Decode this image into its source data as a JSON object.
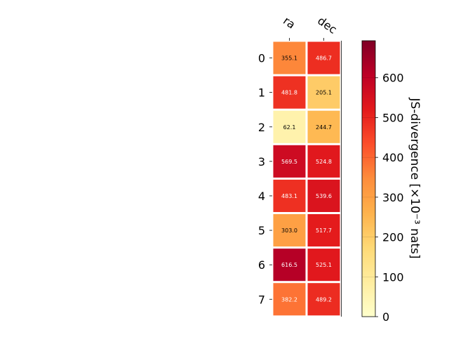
{
  "chart_data": {
    "type": "heatmap",
    "columns": [
      "ra",
      "dec"
    ],
    "rows": [
      "0",
      "1",
      "2",
      "3",
      "4",
      "5",
      "6",
      "7"
    ],
    "values": [
      [
        355.1,
        486.7
      ],
      [
        481.8,
        205.1
      ],
      [
        62.1,
        244.7
      ],
      [
        569.5,
        524.8
      ],
      [
        483.1,
        539.6
      ],
      [
        303.0,
        517.7
      ],
      [
        616.5,
        525.1
      ],
      [
        382.2,
        489.2
      ]
    ],
    "cell_labels": [
      [
        "355.1",
        "486.7"
      ],
      [
        "481.8",
        "205.1"
      ],
      [
        "62.1",
        "244.7"
      ],
      [
        "569.5",
        "524.8"
      ],
      [
        "483.1",
        "539.6"
      ],
      [
        "303.0",
        "517.7"
      ],
      [
        "616.5",
        "525.1"
      ],
      [
        "382.2",
        "489.2"
      ]
    ],
    "colormap": "YlOrRd",
    "colorbar": {
      "label": "JS-divergence [×10⁻³ nats]",
      "min": 0,
      "max": 693,
      "ticks": [
        0,
        100,
        200,
        300,
        400,
        500,
        600
      ],
      "tick_labels": [
        "0",
        "100",
        "200",
        "300",
        "400",
        "500",
        "600"
      ]
    }
  }
}
